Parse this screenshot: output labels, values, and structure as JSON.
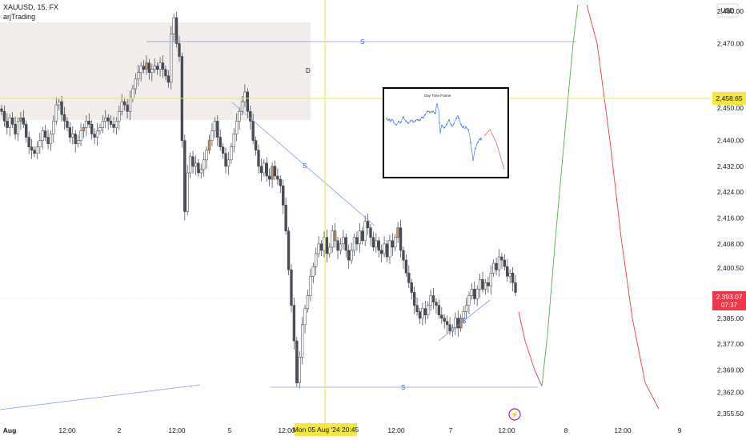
{
  "header": {
    "symbol_line": "XAUUSD, 15, FX",
    "indicator_name": "arjTrading",
    "currency": "USD"
  },
  "price_labels": {
    "crosshair": "2,458.65",
    "last_price": "2,393.07",
    "countdown": "07:37"
  },
  "crosshair_date_label": "Mon 05 Aug '24  20:45",
  "chart_data": {
    "type": "candlestick",
    "symbol": "XAUUSD",
    "interval": "15",
    "exchange": "FX",
    "currency": "USD",
    "y_ticks": [
      "2,480.00",
      "2,470.00",
      "2,458.65",
      "2,450.00",
      "2,440.00",
      "2,432.00",
      "2,424.00",
      "2,416.00",
      "2,408.00",
      "2,400.50",
      "2,393.07",
      "2,385.00",
      "2,377.00",
      "2,369.00",
      "2,362.00",
      "2,355.50"
    ],
    "x_ticks": [
      "Aug",
      "12:00",
      "2",
      "12:00",
      "5",
      "12:00",
      "6",
      "12:00",
      "7",
      "12:00",
      "8",
      "12:00",
      "9"
    ],
    "last_price": 2393.07,
    "crosshair_price": 2458.65,
    "zone_label": "D",
    "line_labels": [
      "S",
      "S",
      "S",
      "S"
    ],
    "closes": [
      2449,
      2446,
      2444,
      2447,
      2445,
      2442,
      2446,
      2447,
      2445,
      2441,
      2438,
      2437,
      2436,
      2438,
      2440,
      2443,
      2441,
      2439,
      2442,
      2446,
      2451,
      2452,
      2448,
      2446,
      2444,
      2441,
      2442,
      2439,
      2440,
      2443,
      2444,
      2446,
      2445,
      2442,
      2441,
      2443,
      2444,
      2446,
      2447,
      2446,
      2445,
      2444,
      2446,
      2449,
      2452,
      2451,
      2449,
      2453,
      2456,
      2459,
      2461,
      2463,
      2462,
      2464,
      2461,
      2462,
      2463,
      2462,
      2464,
      2462,
      2460,
      2458,
      2473,
      2478,
      2470,
      2466,
      2440,
      2418,
      2430,
      2435,
      2432,
      2433,
      2430,
      2431,
      2434,
      2437,
      2440,
      2443,
      2446,
      2441,
      2438,
      2436,
      2432,
      2434,
      2438,
      2442,
      2446,
      2449,
      2452,
      2455,
      2449,
      2446,
      2440,
      2437,
      2432,
      2430,
      2433,
      2429,
      2428,
      2432,
      2429,
      2428,
      2426,
      2420,
      2412,
      2400,
      2389,
      2378,
      2365,
      2373,
      2383,
      2388,
      2392,
      2398,
      2401,
      2405,
      2408,
      2406,
      2410,
      2405,
      2407,
      2412,
      2409,
      2406,
      2408,
      2410,
      2406,
      2403,
      2406,
      2410,
      2408,
      2412,
      2409,
      2415,
      2413,
      2410,
      2407,
      2409,
      2406,
      2405,
      2408,
      2404,
      2409,
      2407,
      2410,
      2413,
      2406,
      2403,
      2399,
      2396,
      2393,
      2389,
      2387,
      2385,
      2388,
      2386,
      2389,
      2392,
      2390,
      2389,
      2386,
      2385,
      2384,
      2383,
      2381,
      2382,
      2385,
      2382,
      2385,
      2387,
      2389,
      2392,
      2394,
      2391,
      2394,
      2397,
      2394,
      2396,
      2395,
      2399,
      2402,
      2400,
      2404,
      2403,
      2401,
      2398,
      2399,
      2396,
      2393
    ],
    "zigzag_first_from": 2476,
    "projection_red_first": [
      2387,
      2378,
      2369,
      2364
    ],
    "projection_green": [
      2364,
      2380,
      2410,
      2446,
      2470,
      2482
    ],
    "projection_red_second": [
      2482,
      2470,
      2440,
      2410,
      2385,
      2365,
      2357
    ],
    "inset_title": "Day Time Frame"
  }
}
